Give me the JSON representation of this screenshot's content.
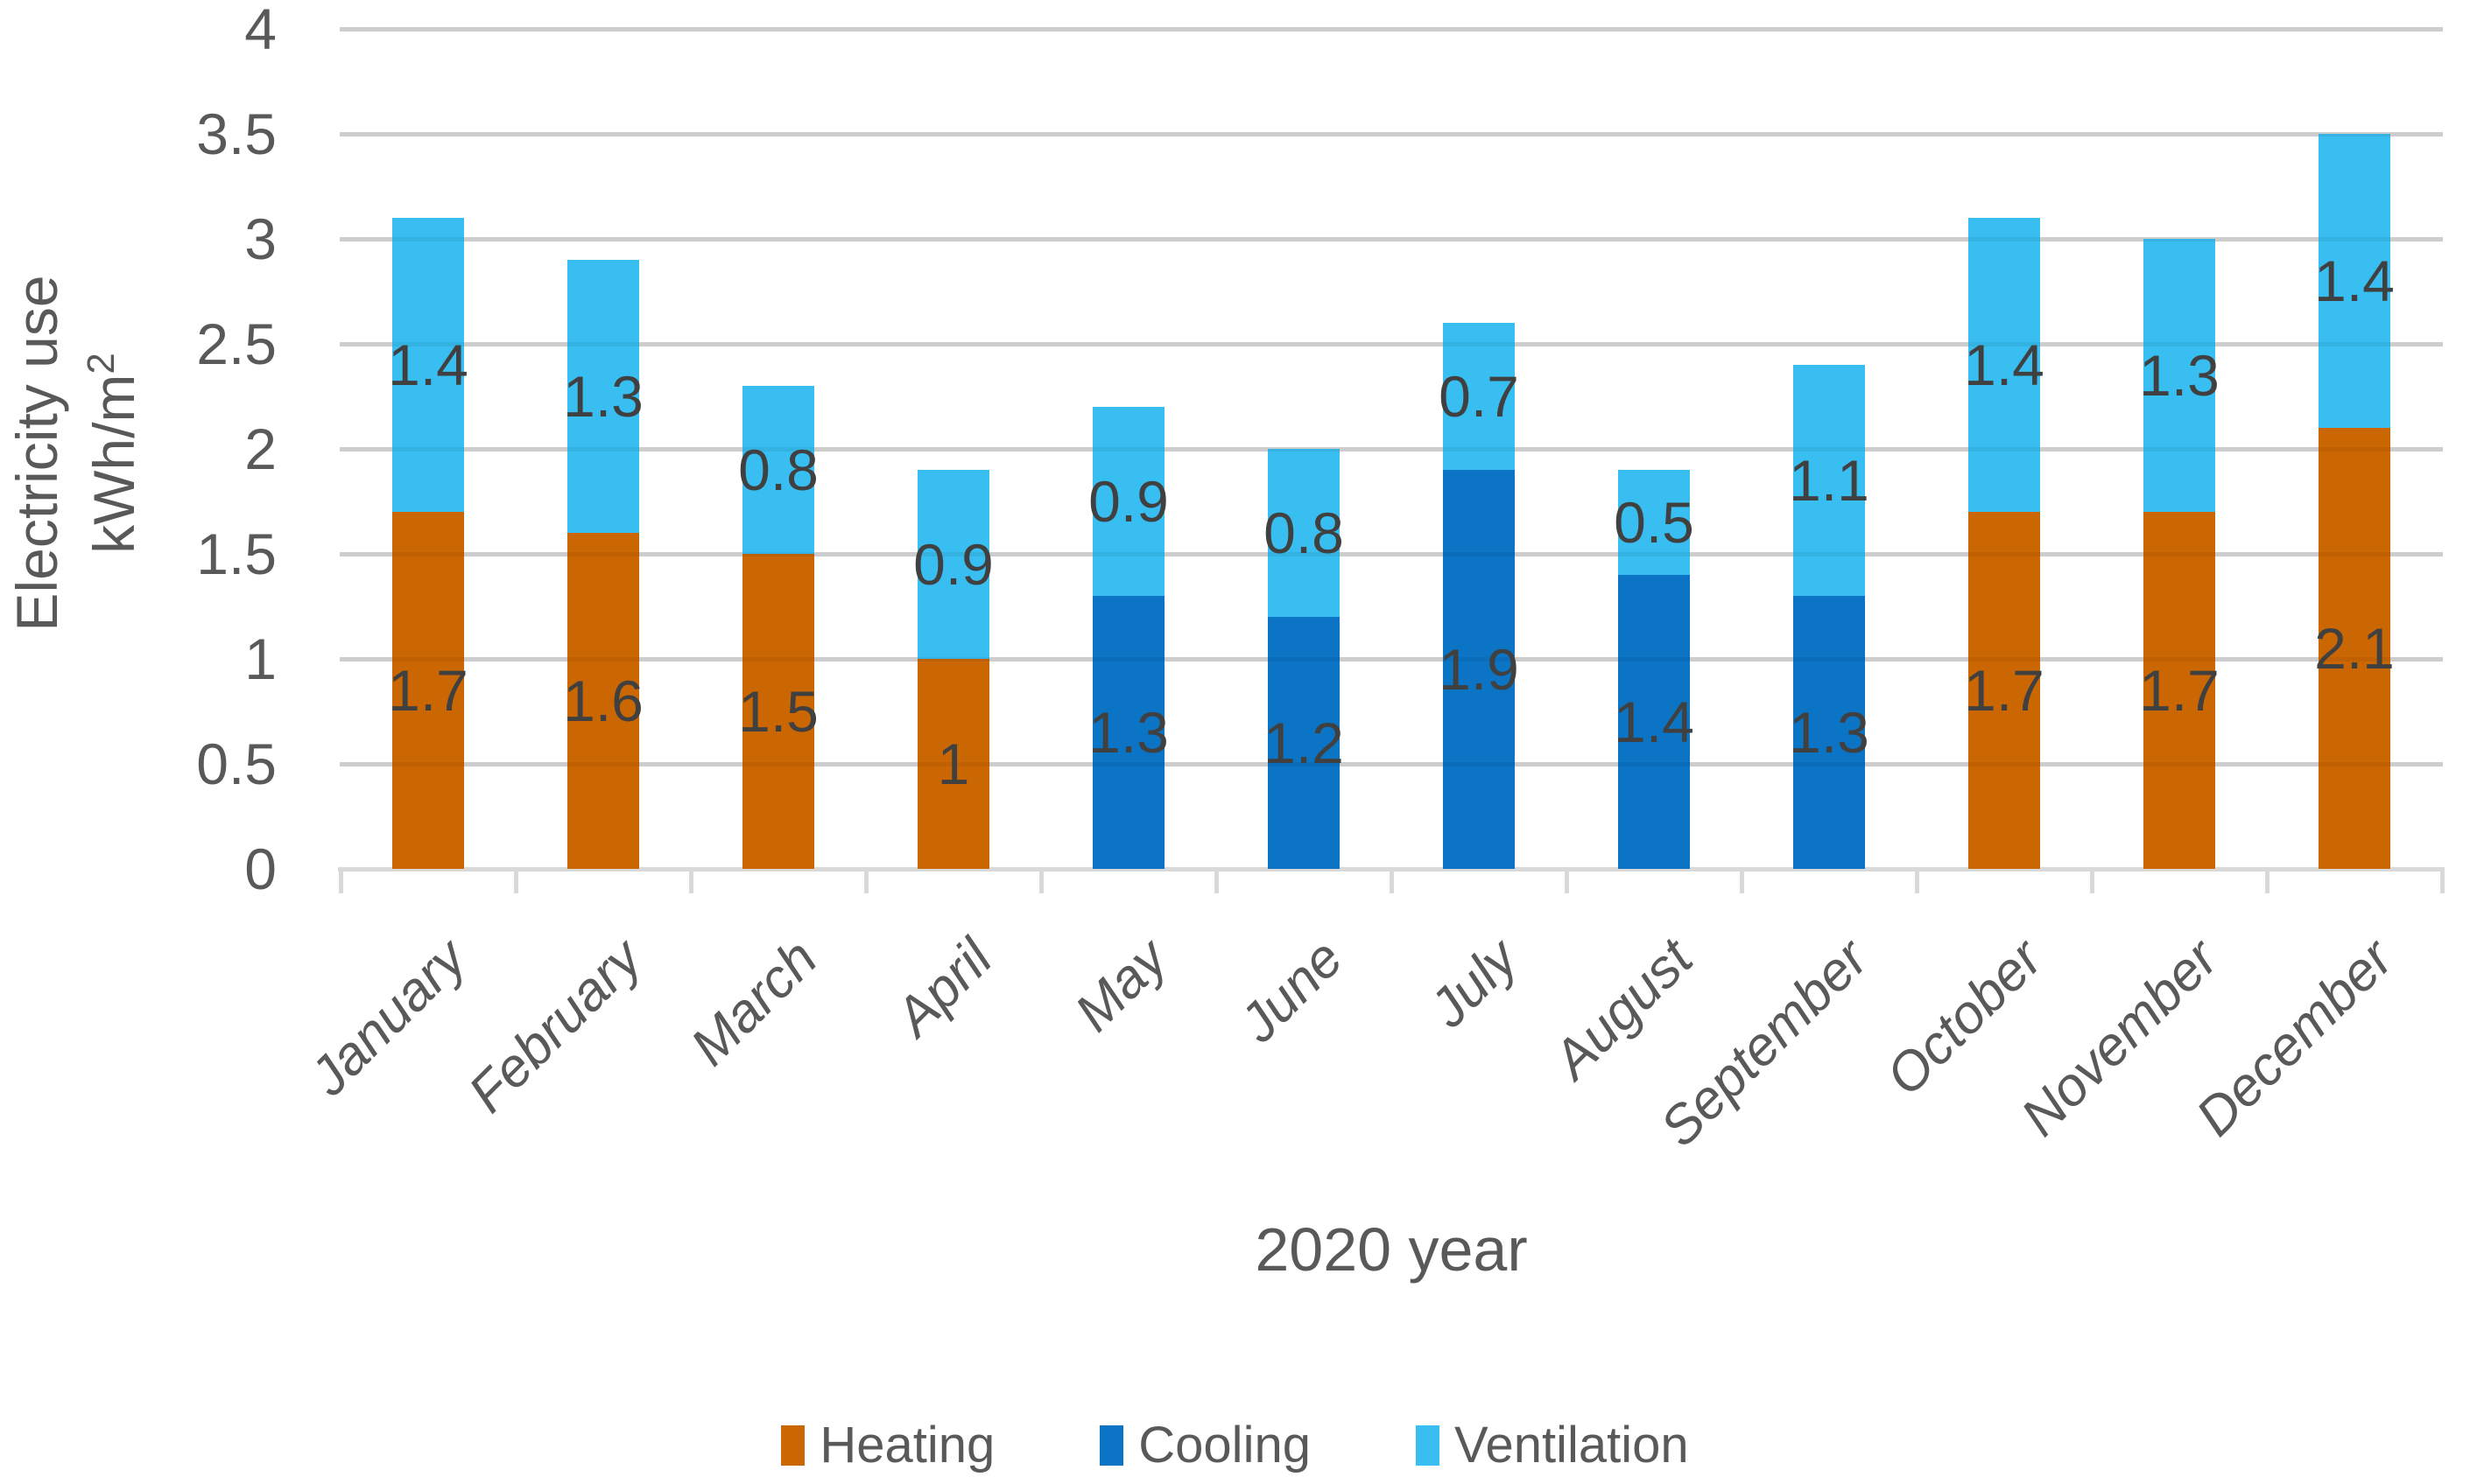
{
  "chart_data": {
    "type": "bar",
    "stacked": true,
    "title": "",
    "xlabel": "2020 year",
    "ylabel": "Electricity use kWh/m²",
    "ylabel_line1": "Electricity use",
    "ylabel_unit_base": "kWh/m",
    "ylabel_unit_sup": "2",
    "categories": [
      "January",
      "February",
      "March",
      "April",
      "May",
      "June",
      "July",
      "August",
      "September",
      "October",
      "November",
      "December"
    ],
    "series": [
      {
        "name": "Heating",
        "color": "#CB6703",
        "values": [
          1.7,
          1.6,
          1.5,
          1,
          0,
          0,
          0,
          0,
          0,
          1.7,
          1.7,
          2.1
        ]
      },
      {
        "name": "Cooling",
        "color": "#0B74C4",
        "values": [
          0,
          0,
          0,
          0,
          1.3,
          1.2,
          1.9,
          1.4,
          1.3,
          0,
          0,
          0
        ]
      },
      {
        "name": "Ventilation",
        "color": "#38BEF0",
        "values": [
          1.4,
          1.3,
          0.8,
          0.9,
          0.9,
          0.8,
          0.7,
          0.5,
          1.1,
          1.4,
          1.3,
          1.4
        ]
      }
    ],
    "totals": [
      3.1,
      2.9,
      2.3,
      1.9,
      2.2,
      2.0,
      2.6,
      1.9,
      2.4,
      3.1,
      3.0,
      3.5
    ],
    "ylim": [
      0,
      4
    ],
    "ytick_step": 0.5,
    "ytick_labels": [
      "0",
      "0.5",
      "1",
      "1.5",
      "2",
      "2.5",
      "3",
      "3.5",
      "4"
    ],
    "grid": "horizontal",
    "data_labels": true,
    "legend_position": "bottom"
  },
  "colors": {
    "heating": "#CB6703",
    "cooling": "#0B74C4",
    "ventilation": "#38BEF0",
    "gridline": "#D9D9D9",
    "axis_text": "#595959",
    "data_label_text": "#404040",
    "background": "#FFFFFF"
  }
}
